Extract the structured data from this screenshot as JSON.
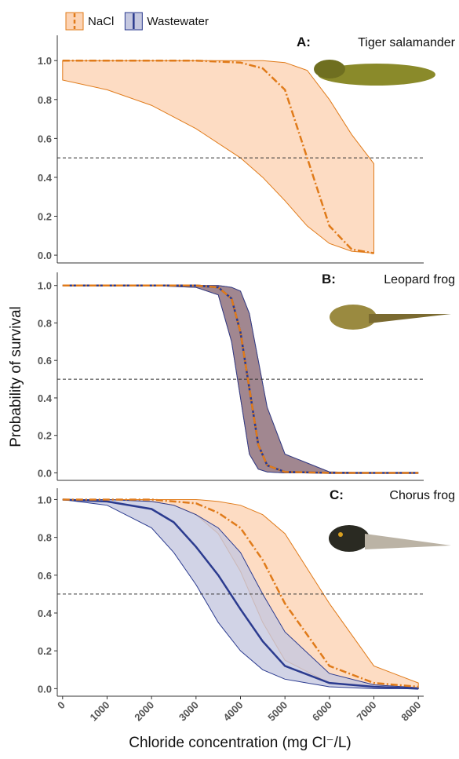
{
  "chart_data": [
    {
      "type": "line",
      "panel_label": "A:",
      "title": "Tiger salamander",
      "x": [
        0,
        1000,
        2000,
        3000,
        4000,
        4500,
        5000,
        5500,
        6000,
        6500,
        7000
      ],
      "series": [
        {
          "name": "NaCl",
          "color": "#e07b1a",
          "band_color": "#fcd3b4",
          "dash": true,
          "values": [
            1,
            1,
            1,
            1,
            0.99,
            0.96,
            0.85,
            0.5,
            0.15,
            0.03,
            0.01
          ],
          "ci_upper": [
            1,
            1,
            1,
            1,
            1,
            1,
            0.99,
            0.95,
            0.8,
            0.62,
            0.47
          ],
          "ci_lower": [
            0.9,
            0.85,
            0.77,
            0.65,
            0.5,
            0.4,
            0.28,
            0.15,
            0.06,
            0.02,
            0.01
          ]
        }
      ],
      "xlim": [
        -120,
        8120
      ],
      "ylim": [
        -0.04,
        1.13
      ],
      "yticks": [
        {
          "value": 0,
          "label": "0.0"
        },
        0.2,
        0.4,
        0.6,
        0.8,
        {
          "value": 1,
          "label": "1.0"
        }
      ],
      "reference_line": 0.5
    },
    {
      "type": "line",
      "panel_label": "B:",
      "title": "Leopard frog",
      "ylabel": "Probability of survival",
      "x": [
        0,
        1000,
        2000,
        3000,
        3500,
        3800,
        4000,
        4200,
        4400,
        4600,
        5000,
        6000,
        7000,
        8000
      ],
      "series": [
        {
          "name": "NaCl",
          "color": "#e07b1a",
          "band_color": "#e6a77a",
          "dash": true,
          "values": [
            1,
            1,
            1,
            1,
            0.99,
            0.93,
            0.75,
            0.45,
            0.15,
            0.04,
            0.005,
            0,
            0,
            0
          ],
          "ci_upper": [
            1,
            1,
            1,
            1,
            1,
            0.99,
            0.97,
            0.85,
            0.6,
            0.35,
            0.1,
            0.005,
            0,
            0
          ],
          "ci_lower": [
            1,
            1,
            1,
            0.99,
            0.95,
            0.7,
            0.4,
            0.1,
            0.02,
            0.005,
            0,
            0,
            0,
            0
          ]
        },
        {
          "name": "Wastewater",
          "color": "#2b3b8f",
          "band_color": "#8f7a8f",
          "dash": false,
          "values": [
            1,
            1,
            1,
            1,
            0.99,
            0.93,
            0.75,
            0.45,
            0.15,
            0.04,
            0.005,
            0,
            0,
            0
          ],
          "ci_upper": [
            1,
            1,
            1,
            1,
            1,
            0.99,
            0.97,
            0.85,
            0.6,
            0.35,
            0.1,
            0.005,
            0,
            0
          ],
          "ci_lower": [
            1,
            1,
            1,
            0.99,
            0.95,
            0.7,
            0.4,
            0.1,
            0.02,
            0.005,
            0,
            0,
            0,
            0
          ]
        }
      ],
      "xlim": [
        -120,
        8120
      ],
      "ylim": [
        -0.04,
        1.07
      ],
      "yticks": [
        {
          "value": 0,
          "label": "0.0"
        },
        0.2,
        0.4,
        0.6,
        0.8,
        {
          "value": 1,
          "label": "1.0"
        }
      ],
      "reference_line": 0.5
    },
    {
      "type": "line",
      "panel_label": "C:",
      "title": "Chorus frog",
      "xlabel": "Chloride concentration (mg Cl⁻/L)",
      "x": [
        0,
        1000,
        2000,
        2500,
        3000,
        3500,
        4000,
        4500,
        5000,
        6000,
        7000,
        8000
      ],
      "series": [
        {
          "name": "NaCl",
          "color": "#e07b1a",
          "band_color": "#fcd3b4",
          "dash": true,
          "values": [
            1,
            1,
            1,
            0.99,
            0.98,
            0.93,
            0.85,
            0.68,
            0.45,
            0.12,
            0.03,
            0.01
          ],
          "ci_upper": [
            1,
            1,
            1,
            1,
            1,
            0.99,
            0.97,
            0.92,
            0.82,
            0.45,
            0.12,
            0.03
          ],
          "ci_lower": [
            1,
            1,
            0.99,
            0.97,
            0.92,
            0.82,
            0.62,
            0.35,
            0.15,
            0.03,
            0.01,
            0
          ]
        },
        {
          "name": "Wastewater",
          "color": "#2b3b8f",
          "band_color": "#c5c8e0",
          "dash": false,
          "values": [
            1,
            0.99,
            0.95,
            0.88,
            0.75,
            0.6,
            0.42,
            0.25,
            0.12,
            0.03,
            0.01,
            0
          ],
          "ci_upper": [
            1,
            1,
            0.99,
            0.97,
            0.92,
            0.85,
            0.72,
            0.5,
            0.3,
            0.08,
            0.02,
            0.005
          ],
          "ci_lower": [
            1,
            0.97,
            0.85,
            0.72,
            0.55,
            0.35,
            0.2,
            0.1,
            0.05,
            0.01,
            0,
            0
          ]
        }
      ],
      "xlim": [
        -120,
        8120
      ],
      "ylim": [
        -0.04,
        1.06
      ],
      "xticks": [
        0,
        1000,
        2000,
        3000,
        4000,
        5000,
        6000,
        7000,
        8000
      ],
      "yticks": [
        {
          "value": 0,
          "label": "0.0"
        },
        0.2,
        0.4,
        0.6,
        0.8,
        {
          "value": 1,
          "label": "1.0"
        }
      ],
      "reference_line": 0.5
    }
  ]
}
